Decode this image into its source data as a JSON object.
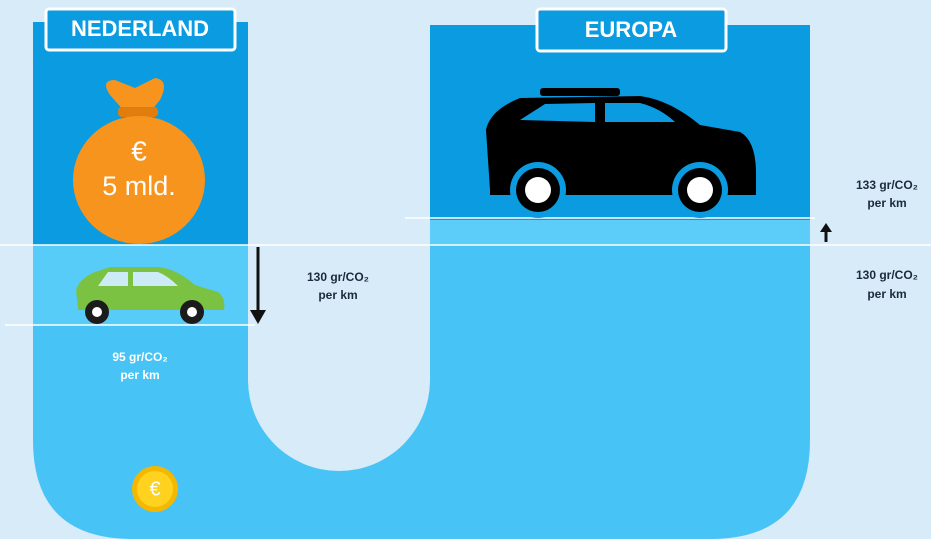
{
  "left": {
    "title": "NEDERLAND",
    "bag_symbol": "€",
    "bag_amount": "5 mld.",
    "coin_symbol": "€"
  },
  "right": {
    "title": "EUROPA"
  },
  "labels": {
    "nl_target": {
      "line1": "95 gr/CO₂",
      "line2": "per km"
    },
    "nl_current": {
      "line1": "130 gr/CO₂",
      "line2": "per km"
    },
    "eu_new": {
      "line1": "133 gr/CO₂",
      "line2": "per km"
    },
    "eu_current": {
      "line1": "130 gr/CO₂",
      "line2": "per km"
    }
  }
}
